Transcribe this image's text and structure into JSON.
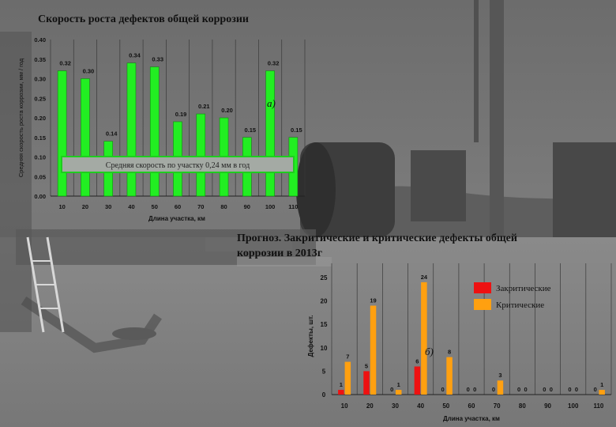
{
  "chart_data": [
    {
      "type": "bar",
      "title": "Скорость роста дефектов общей коррозии",
      "xlabel": "Длина участка, км",
      "ylabel": "Средняя скорость роста коррозии, мм / год",
      "categories": [
        "10",
        "20",
        "30",
        "40",
        "50",
        "60",
        "70",
        "80",
        "90",
        "100",
        "110"
      ],
      "series": [
        {
          "values": [
            0.32,
            0.3,
            0.14,
            0.34,
            0.33,
            0.19,
            0.21,
            0.2,
            0.15,
            0.32,
            0.15
          ],
          "labels": [
            "0.32",
            "0.30",
            "0.14",
            "0.34",
            "0.33",
            "0.19",
            "0.21",
            "0.20",
            "0.15",
            "0.32",
            "0.15"
          ],
          "color": "#22ee22"
        }
      ],
      "ylim": [
        0,
        0.4
      ],
      "yticks": [
        "0.00",
        "0.05",
        "0.10",
        "0.15",
        "0.20",
        "0.25",
        "0.30",
        "0.35",
        "0.40"
      ],
      "grid": "vertical",
      "annotation_box": "Средняя скорость по участку 0,24 мм в год",
      "panel_label": "а)"
    },
    {
      "type": "bar",
      "title": "Прогноз. Закритические и критические дефекты общей коррозии в 2013г",
      "xlabel": "Длина участка, км",
      "ylabel": "Дефекты, шт.",
      "categories": [
        "10",
        "20",
        "30",
        "40",
        "50",
        "60",
        "70",
        "80",
        "90",
        "100",
        "110"
      ],
      "series": [
        {
          "name": "Закритические",
          "values": [
            1,
            5,
            0,
            6,
            0,
            0,
            0,
            0,
            0,
            0,
            0
          ],
          "labels": [
            "1",
            "5",
            "0",
            "6",
            "0",
            "0",
            "0",
            "0",
            "0",
            "0",
            "0"
          ],
          "color": "#ee1111"
        },
        {
          "name": "Критические",
          "values": [
            7,
            19,
            1,
            24,
            8,
            0,
            3,
            0,
            0,
            0,
            1
          ],
          "labels": [
            "7",
            "19",
            "1",
            "24",
            "8",
            "0",
            "3",
            "0",
            "0",
            "0",
            "1"
          ],
          "color": "#ffa010"
        }
      ],
      "ylim": [
        0,
        25
      ],
      "yticks": [
        "0",
        "5",
        "10",
        "15",
        "20",
        "25"
      ],
      "grid": "vertical",
      "legend": "top-right",
      "panel_label": "б)"
    }
  ]
}
